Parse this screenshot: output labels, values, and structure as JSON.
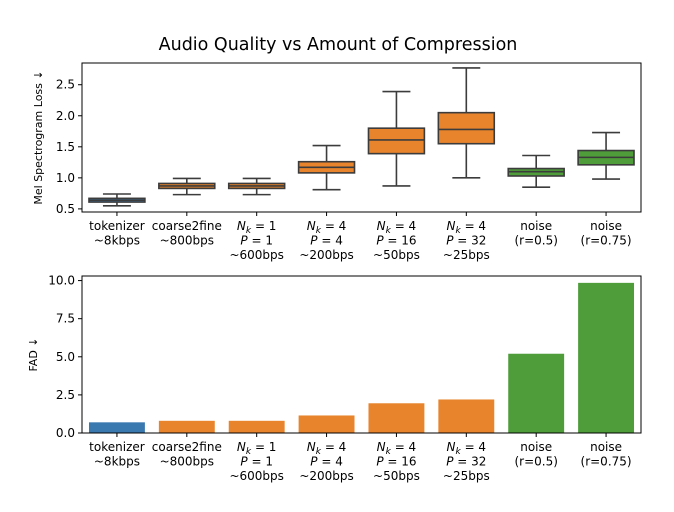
{
  "title": "Audio Quality vs Amount of Compression",
  "colors": {
    "tokenizer": "#3a78b0",
    "orange": "#e8842c",
    "green": "#4e9d3a",
    "dark": "#3c3c3c"
  },
  "categories": [
    [
      "tokenizer",
      "~8kbps"
    ],
    [
      "coarse2fine",
      "~800bps"
    ],
    [
      "N_k = 1",
      "P = 1",
      "~600bps"
    ],
    [
      "N_k = 4",
      "P = 4",
      "~200bps"
    ],
    [
      "N_k = 4",
      "P = 16",
      "~50bps"
    ],
    [
      "N_k = 4",
      "P = 32",
      "~25bps"
    ],
    [
      "noise",
      "(r=0.5)"
    ],
    [
      "noise",
      "(r=0.75)"
    ]
  ],
  "chart_data": [
    {
      "type": "box",
      "ylabel": "Mel Spectrogram Loss ↓",
      "ylim": [
        0.45,
        2.85
      ],
      "yticks": [
        "0.5",
        "1.0",
        "1.5",
        "2.0",
        "2.5"
      ],
      "boxes": [
        {
          "whislo": 0.55,
          "q1": 0.61,
          "med": 0.64,
          "q3": 0.67,
          "whishi": 0.74,
          "color_key": "tokenizer"
        },
        {
          "whislo": 0.73,
          "q1": 0.83,
          "med": 0.87,
          "q3": 0.91,
          "whishi": 0.99,
          "color_key": "orange"
        },
        {
          "whislo": 0.73,
          "q1": 0.83,
          "med": 0.87,
          "q3": 0.91,
          "whishi": 0.99,
          "color_key": "orange"
        },
        {
          "whislo": 0.81,
          "q1": 1.08,
          "med": 1.17,
          "q3": 1.26,
          "whishi": 1.52,
          "color_key": "orange"
        },
        {
          "whislo": 0.87,
          "q1": 1.39,
          "med": 1.61,
          "q3": 1.8,
          "whishi": 2.39,
          "color_key": "orange"
        },
        {
          "whislo": 1.0,
          "q1": 1.55,
          "med": 1.78,
          "q3": 2.05,
          "whishi": 2.77,
          "color_key": "orange"
        },
        {
          "whislo": 0.85,
          "q1": 1.03,
          "med": 1.1,
          "q3": 1.15,
          "whishi": 1.36,
          "color_key": "green"
        },
        {
          "whislo": 0.98,
          "q1": 1.21,
          "med": 1.33,
          "q3": 1.44,
          "whishi": 1.73,
          "color_key": "green"
        }
      ]
    },
    {
      "type": "bar",
      "ylabel": "FAD ↓",
      "ylim": [
        0,
        10.3
      ],
      "yticks": [
        "0.0",
        "2.5",
        "5.0",
        "7.5",
        "10.0"
      ],
      "values": [
        0.7,
        0.8,
        0.8,
        1.15,
        1.95,
        2.2,
        5.2,
        9.85
      ],
      "color_keys": [
        "tokenizer",
        "orange",
        "orange",
        "orange",
        "orange",
        "orange",
        "green",
        "green"
      ]
    }
  ]
}
